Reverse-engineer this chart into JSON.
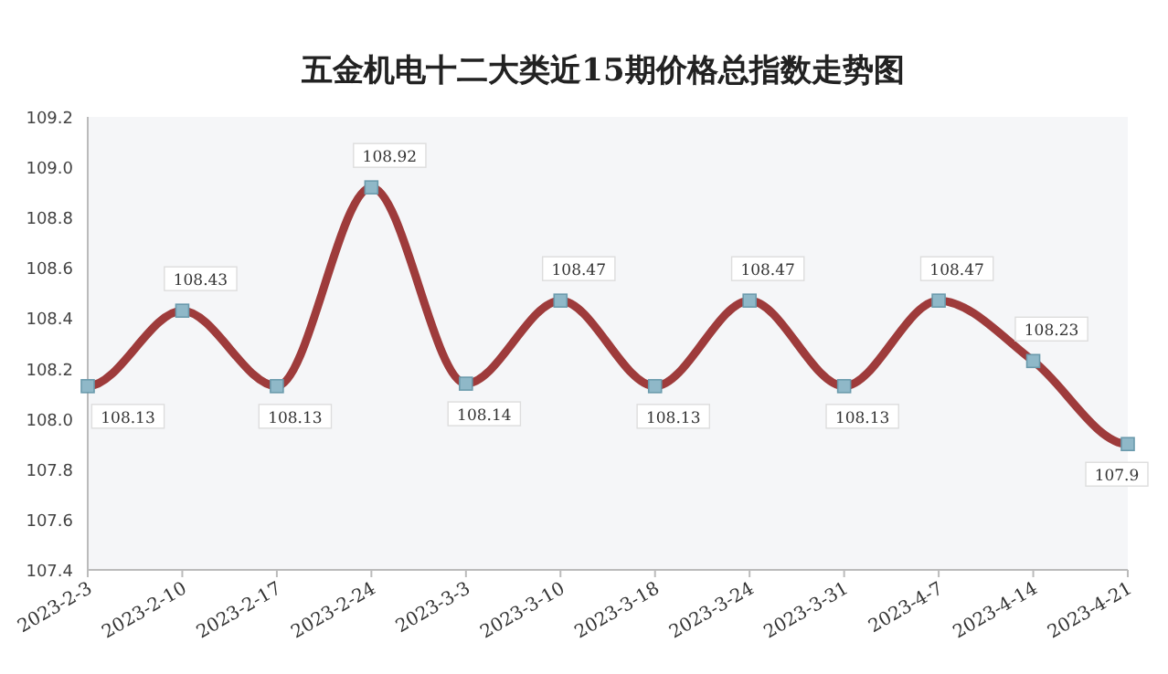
{
  "chart_data": {
    "type": "line",
    "title": "五金机电十二大类近15期价格总指数走势图",
    "categories": [
      "2023-2-3",
      "2023-2-10",
      "2023-2-17",
      "2023-2-24",
      "2023-3-3",
      "2023-3-10",
      "2023-3-18",
      "2023-3-24",
      "2023-3-31",
      "2023-4-7",
      "2023-4-14",
      "2023-4-21"
    ],
    "series": [
      {
        "color": "#9e3b3b",
        "values": [
          108.13,
          108.43,
          108.13,
          108.92,
          108.14,
          108.47,
          108.13,
          108.47,
          108.13,
          108.47,
          108.23,
          107.9
        ]
      }
    ],
    "ylim": [
      107.4,
      109.2
    ],
    "yticks": [
      "107.4",
      "107.6",
      "107.8",
      "108.0",
      "108.2",
      "108.4",
      "108.6",
      "108.8",
      "109.0",
      "109.2"
    ],
    "marker": "square",
    "data_labels": true,
    "grid": false
  }
}
